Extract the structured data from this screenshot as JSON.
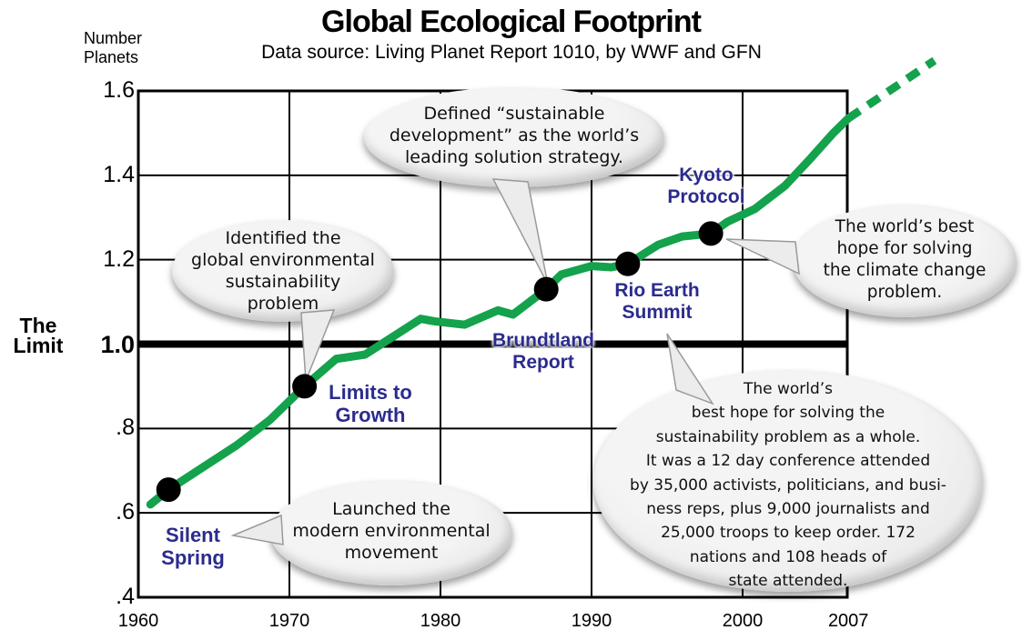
{
  "title": "Global Ecological Footprint",
  "subtitle": "Data source: Living Planet Report 1010, by WWF and GFN",
  "y_axis_label_lines": [
    "Number",
    "Planets"
  ],
  "limit_label_lines": [
    "The",
    "Limit"
  ],
  "colors": {
    "line_green": "#14a24c",
    "label_navy": "#2b2b8e",
    "grid_black": "#000000",
    "bubble_fill": "#ececec",
    "bubble_stroke": "#9a9a9a",
    "dot_black": "#000000"
  },
  "events": [
    {
      "name": "Silent Spring",
      "label_lines": [
        "Silent",
        "Spring"
      ],
      "year": 1962,
      "value": 0.655
    },
    {
      "name": "Limits to Growth",
      "label_lines": [
        "Limits to",
        "Growth"
      ],
      "year": 1971,
      "value": 0.9
    },
    {
      "name": "Brundtland Report",
      "label_lines": [
        "Brundtland",
        "Report"
      ],
      "year": 1987,
      "value": 1.13
    },
    {
      "name": "Rio Earth Summit",
      "label_lines": [
        "Rio Earth",
        "Summit"
      ],
      "year": 1992.4,
      "value": 1.19
    },
    {
      "name": "Kyoto Protocol",
      "label_lines": [
        "Kyoto",
        "Protocol"
      ],
      "year": 1997.9,
      "value": 1.262
    }
  ],
  "callouts": [
    {
      "id": "identified",
      "points_to": "Limits to Growth",
      "lines": [
        "Identified the",
        "global environmental",
        "sustainability",
        "problem"
      ]
    },
    {
      "id": "defined",
      "points_to": "Brundtland Report",
      "lines": [
        "Defined “sustainable",
        "development” as the world’s",
        "leading solution strategy."
      ]
    },
    {
      "id": "launched",
      "points_to": "Silent Spring",
      "lines": [
        "Launched the",
        "modern environmental",
        "movement"
      ]
    },
    {
      "id": "climate",
      "points_to": "Kyoto Protocol",
      "lines": [
        "The world’s best",
        "hope for solving",
        "the climate change",
        "problem."
      ]
    },
    {
      "id": "big",
      "points_to": "Rio Earth Summit",
      "lines": [
        "The world’s",
        "best hope for solving the",
        "sustainability problem as a whole.",
        "It was a 12 day conference attended",
        "by 35,000 activists, politicians, and busi-",
        "ness reps, plus 9,000 journalists and",
        "25,000 troops to keep order. 172",
        "nations and 108 heads of",
        "state attended."
      ]
    }
  ],
  "chart_data": {
    "type": "line",
    "title": "Global Ecological Footprint",
    "subtitle": "Data source: Living Planet Report 1010, by WWF and GFN",
    "ylabel": "Number Planets",
    "xlabel": "",
    "xlim": [
      1960,
      2007
    ],
    "ylim": [
      0.4,
      1.6
    ],
    "grid": true,
    "x_ticks": [
      {
        "year": 1960,
        "label": "1960"
      },
      {
        "year": 1970,
        "label": "1970"
      },
      {
        "year": 1980,
        "label": "1980"
      },
      {
        "year": 1990,
        "label": "1990"
      },
      {
        "year": 2000,
        "label": "2000"
      },
      {
        "year": 2007,
        "label": "2007"
      }
    ],
    "y_ticks": [
      {
        "value": 1.6,
        "label": "1.6"
      },
      {
        "value": 1.4,
        "label": "1.4"
      },
      {
        "value": 1.2,
        "label": "1.2"
      },
      {
        "value": 1.0,
        "label": "1.0",
        "bold": true
      },
      {
        "value": 0.8,
        "label": ".8"
      },
      {
        "value": 0.6,
        "label": ".6"
      },
      {
        "value": 0.4,
        "label": ".4"
      }
    ],
    "grid_years": [
      1970,
      1980,
      1990,
      2000
    ],
    "grid_values": [
      1.4,
      1.2,
      0.8,
      0.6
    ],
    "limit_value": 1.0,
    "series": [
      {
        "name": "Global ecological footprint (number of planets)",
        "points": [
          [
            1960.8,
            0.62
          ],
          [
            1962,
            0.655
          ],
          [
            1966.5,
            0.76
          ],
          [
            1968.7,
            0.82
          ],
          [
            1971,
            0.9
          ],
          [
            1973.1,
            0.965
          ],
          [
            1975,
            0.975
          ],
          [
            1978.7,
            1.06
          ],
          [
            1979.6,
            1.054
          ],
          [
            1981.6,
            1.046
          ],
          [
            1983.8,
            1.08
          ],
          [
            1984.8,
            1.07
          ],
          [
            1987,
            1.13
          ],
          [
            1988,
            1.165
          ],
          [
            1990,
            1.185
          ],
          [
            1991.3,
            1.182
          ],
          [
            1992.4,
            1.19
          ],
          [
            1994.4,
            1.235
          ],
          [
            1996,
            1.255
          ],
          [
            1997.9,
            1.262
          ],
          [
            1999,
            1.29
          ],
          [
            2000.8,
            1.32
          ],
          [
            2002.8,
            1.375
          ],
          [
            2004.5,
            1.44
          ],
          [
            2006,
            1.5
          ],
          [
            2007,
            1.535
          ]
        ]
      }
    ],
    "projection_dashed": [
      [
        2007,
        1.535
      ],
      [
        2012.7,
        1.672
      ]
    ]
  }
}
